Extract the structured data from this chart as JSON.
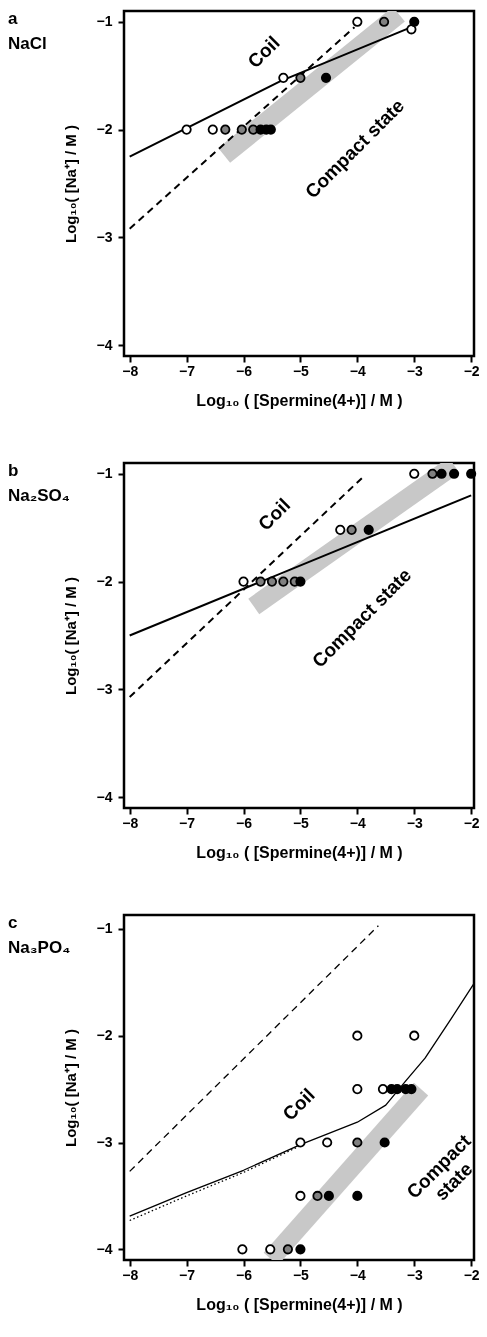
{
  "chart_data": [
    {
      "type": "scatter",
      "title": "a",
      "subtitle": "NaCl",
      "xlabel": "Log₁₀ ( [Spermine(4+)] / M )",
      "ylabel": "Log₁₀( [Na⁺] / M )",
      "xlim": [
        -8.1,
        -1.95
      ],
      "ylim": [
        -4.1,
        -0.9
      ],
      "xticks": [
        -8,
        -7,
        -6,
        -5,
        -4,
        -3,
        -2
      ],
      "yticks": [
        -4,
        -3,
        -2,
        -1
      ],
      "series": [
        {
          "type": "line",
          "color": "#c8c8c8",
          "x": [
            -6.34,
            -3.27
          ],
          "values": [
            -2.24,
            -0.93
          ]
        },
        {
          "type": "line",
          "color": "#000000",
          "line_style": "dashed",
          "x": [
            -8,
            -4.05
          ],
          "values": [
            -2.92,
            -1.05
          ]
        },
        {
          "type": "line",
          "color": "#000000",
          "line_style": "solid",
          "x": [
            -8,
            -5.35,
            -3.05
          ],
          "values": [
            -2.25,
            -1.55,
            -1.05
          ]
        },
        {
          "color": "#ffffff",
          "marker": "circle",
          "x": [
            -7.0,
            -6.54,
            -5.3,
            -4.0,
            -3.05
          ],
          "values": [
            -2,
            -2,
            -1.52,
            -1,
            -1.07
          ]
        },
        {
          "color": "#808080",
          "marker": "circle",
          "x": [
            -6.32,
            -6.03,
            -5.83,
            -5.0,
            -3.53
          ],
          "values": [
            -2,
            -2,
            -2,
            -1.52,
            -1
          ]
        },
        {
          "color": "#000000",
          "marker": "circle",
          "x": [
            -5.7,
            -5.6,
            -5.52,
            -4.55,
            -3.0
          ],
          "values": [
            -2,
            -2,
            -2,
            -1.52,
            -1
          ]
        }
      ],
      "annotations": [
        "Coil",
        "Compact state"
      ]
    },
    {
      "type": "scatter",
      "title": "b",
      "subtitle": "Na₂SO₄",
      "xlabel": "Log₁₀ ( [Spermine(4+)] / M )",
      "ylabel": "Log₁₀( [Na⁺] / M )",
      "xlim": [
        -8.1,
        -1.95
      ],
      "ylim": [
        -4.1,
        -0.9
      ],
      "xticks": [
        -8,
        -7,
        -6,
        -5,
        -4,
        -3,
        -2
      ],
      "yticks": [
        -4,
        -3,
        -2,
        -1
      ],
      "series": [
        {
          "type": "line",
          "color": "#c8c8c8",
          "x": [
            -5.82,
            -2.3
          ],
          "values": [
            -2.23,
            -0.92
          ]
        },
        {
          "type": "line",
          "color": "#000000",
          "line_style": "dashed",
          "x": [
            -8,
            -3.9
          ],
          "values": [
            -3.07,
            -1.03
          ]
        },
        {
          "type": "line",
          "color": "#000000",
          "line_style": "solid",
          "x": [
            -8,
            -2.0
          ],
          "values": [
            -2.5,
            -1.2
          ]
        },
        {
          "color": "#ffffff",
          "marker": "circle",
          "x": [
            -6.0,
            -4.3,
            -3.0
          ],
          "values": [
            -2,
            -1.52,
            -1
          ]
        },
        {
          "color": "#808080",
          "marker": "circle",
          "x": [
            -5.7,
            -5.5,
            -5.3,
            -5.1,
            -4.1,
            -2.68
          ],
          "values": [
            -2,
            -2,
            -2,
            -2,
            -1.52,
            -1
          ]
        },
        {
          "color": "#000000",
          "marker": "circle",
          "x": [
            -5.0,
            -3.8,
            -2.52,
            -2.3,
            -2.0
          ],
          "values": [
            -2,
            -1.52,
            -1,
            -1,
            -1
          ]
        }
      ],
      "annotations": [
        "Coil",
        "Compact state"
      ]
    },
    {
      "type": "scatter",
      "title": "c",
      "subtitle": "Na₃PO₄",
      "xlabel": "Log₁₀ ( [Spermine(4+)] / M )",
      "ylabel": "Log₁₀( [Na⁺] / M )",
      "xlim": [
        -8.1,
        -1.95
      ],
      "ylim": [
        -4.1,
        -0.87
      ],
      "xticks": [
        -8,
        -7,
        -6,
        -5,
        -4,
        -3,
        -2
      ],
      "yticks": [
        -4,
        -3,
        -2,
        -1
      ],
      "series": [
        {
          "type": "line",
          "color": "#c8c8c8",
          "x": [
            -5.52,
            -2.88
          ],
          "values": [
            -4.09,
            -2.5
          ]
        },
        {
          "type": "line",
          "color": "#000000",
          "line_style": "dashed",
          "x": [
            -8,
            -3.63
          ],
          "values": [
            -3.27,
            -0.97
          ]
        },
        {
          "type": "line",
          "color": "#000000",
          "line_style": "dotted",
          "x": [
            -8,
            -7,
            -6,
            -5
          ],
          "values": [
            -3.73,
            -3.5,
            -3.28,
            -3.03
          ]
        },
        {
          "type": "line",
          "color": "#000000",
          "line_style": "solid",
          "x": [
            -8,
            -7,
            -6,
            -5,
            -4,
            -3.5,
            -3.16,
            -2.81,
            -2.35,
            -1.96
          ],
          "values": [
            -3.69,
            -3.47,
            -3.26,
            -3.02,
            -2.81,
            -2.65,
            -2.43,
            -2.21,
            -1.84,
            -1.52
          ]
        },
        {
          "color": "#ffffff",
          "marker": "circle",
          "x": [
            -4.0,
            -3.0,
            -4.0,
            -3.55,
            -5.0,
            -4.53,
            -5.0,
            -6.02,
            -5.53
          ],
          "values": [
            -2,
            -2,
            -2.5,
            -2.5,
            -3,
            -3,
            -3.5,
            -4,
            -4
          ]
        },
        {
          "color": "#808080",
          "marker": "circle",
          "x": [
            -4.0,
            -4.7,
            -5.22
          ],
          "values": [
            -3,
            -3.5,
            -4
          ]
        },
        {
          "color": "#000000",
          "marker": "circle",
          "x": [
            -3.4,
            -3.3,
            -3.15,
            -3.05,
            -3.52,
            -4.5,
            -4.0,
            -5.0
          ],
          "values": [
            -2.5,
            -2.5,
            -2.5,
            -2.5,
            -3,
            -3.5,
            -3.5,
            -4
          ]
        }
      ],
      "annotations": [
        "Coil",
        "Compact\nstate"
      ]
    }
  ]
}
